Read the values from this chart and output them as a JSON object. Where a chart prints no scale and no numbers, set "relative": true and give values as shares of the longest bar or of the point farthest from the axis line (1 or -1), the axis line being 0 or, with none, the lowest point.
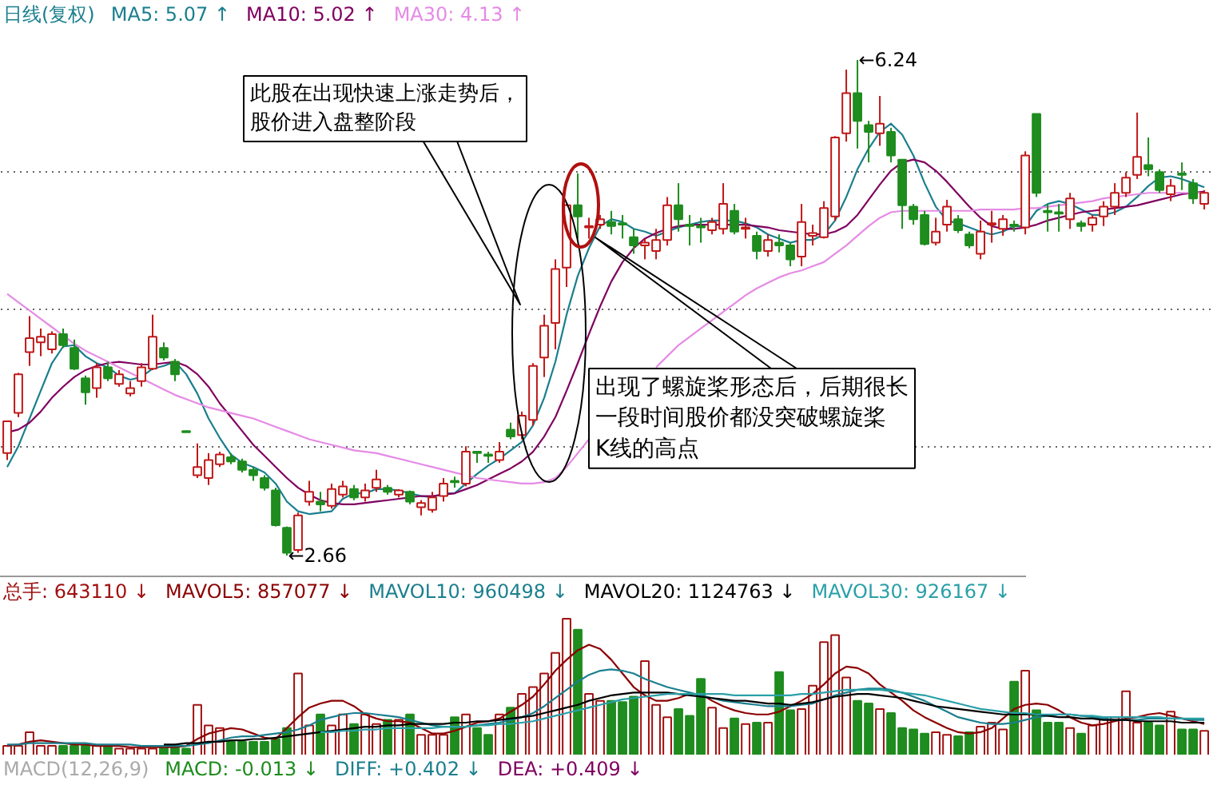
{
  "chart_data": [
    {
      "type": "candlestick",
      "title": "日线(复权)",
      "legend": "top left",
      "grid": "y",
      "yticks": [
        {
          "value": 5.43,
          "label": null
        },
        {
          "value": 4.44,
          "label": null
        },
        {
          "value": 3.45,
          "label": null
        }
      ],
      "categories": [
        null,
        null,
        null,
        null,
        null,
        null,
        null,
        null,
        null,
        null,
        null,
        null,
        null,
        null,
        null,
        null,
        null,
        null,
        null,
        null,
        null,
        null,
        null,
        null,
        null,
        null,
        null,
        null,
        null,
        null,
        null,
        null,
        null,
        null,
        null,
        null,
        null,
        null,
        null,
        null,
        null,
        null,
        null,
        null,
        null,
        null,
        null,
        null,
        null,
        null,
        null,
        null,
        null,
        null,
        null,
        null,
        null,
        null,
        null,
        null,
        null,
        null,
        null,
        null,
        null,
        null,
        null,
        null,
        null,
        null,
        null,
        null,
        null,
        null,
        null,
        null,
        null,
        null,
        null,
        null,
        null,
        null,
        null,
        null,
        null,
        null,
        null,
        null,
        null,
        null,
        null,
        null,
        null,
        null,
        null,
        null,
        null,
        null,
        null,
        null,
        null,
        null,
        null,
        null,
        null,
        null,
        null,
        null
      ],
      "ohlc": [
        [
          3.4,
          3.63,
          3.35,
          3.63
        ],
        [
          3.69,
          3.98,
          3.66,
          3.97
        ],
        [
          4.13,
          4.39,
          4.03,
          4.23
        ],
        [
          4.2,
          4.3,
          4.1,
          4.24
        ],
        [
          4.15,
          4.28,
          4.12,
          4.26
        ],
        [
          4.26,
          4.3,
          4.16,
          4.18
        ],
        [
          4.16,
          4.22,
          4.0,
          4.01
        ],
        [
          3.94,
          3.96,
          3.75,
          3.84
        ],
        [
          3.87,
          4.05,
          3.8,
          4.02
        ],
        [
          4.02,
          4.06,
          3.92,
          3.94
        ],
        [
          3.9,
          4.0,
          3.88,
          3.97
        ],
        [
          3.83,
          3.92,
          3.81,
          3.87
        ],
        [
          3.92,
          4.05,
          3.88,
          4.02
        ],
        [
          4.01,
          4.4,
          4.0,
          4.24
        ],
        [
          4.16,
          4.2,
          4.07,
          4.09
        ],
        [
          4.06,
          4.08,
          3.92,
          3.97
        ],
        [
          3.56,
          3.56,
          3.55,
          3.55
        ],
        [
          3.24,
          3.47,
          3.22,
          3.3
        ],
        [
          3.22,
          3.4,
          3.17,
          3.35
        ],
        [
          3.32,
          3.41,
          3.3,
          3.39
        ],
        [
          3.37,
          3.4,
          3.32,
          3.34
        ],
        [
          3.34,
          3.36,
          3.26,
          3.28
        ],
        [
          3.28,
          3.3,
          3.2,
          3.24
        ],
        [
          3.22,
          3.24,
          3.13,
          3.15
        ],
        [
          3.13,
          3.15,
          2.87,
          2.88
        ],
        [
          2.86,
          2.87,
          2.66,
          2.68
        ],
        [
          2.7,
          2.97,
          2.68,
          2.95
        ],
        [
          3.05,
          3.2,
          3.02,
          3.12
        ],
        [
          3.05,
          3.12,
          2.98,
          3.03
        ],
        [
          3.02,
          3.18,
          3.0,
          3.14
        ],
        [
          3.1,
          3.2,
          3.08,
          3.16
        ],
        [
          3.14,
          3.17,
          3.06,
          3.08
        ],
        [
          3.08,
          3.18,
          3.05,
          3.13
        ],
        [
          3.15,
          3.28,
          3.12,
          3.21
        ],
        [
          3.15,
          3.17,
          3.1,
          3.12
        ],
        [
          3.1,
          3.14,
          3.08,
          3.13
        ],
        [
          3.12,
          3.13,
          3.03,
          3.05
        ],
        [
          3.01,
          3.06,
          2.95,
          3.04
        ],
        [
          2.99,
          3.12,
          2.97,
          3.08
        ],
        [
          3.09,
          3.22,
          3.05,
          3.18
        ],
        [
          3.2,
          3.23,
          3.15,
          3.19
        ],
        [
          3.18,
          3.45,
          3.16,
          3.41
        ],
        [
          3.41,
          3.41,
          3.33,
          3.4
        ],
        [
          3.39,
          3.41,
          3.33,
          3.38
        ],
        [
          3.35,
          3.48,
          3.33,
          3.41
        ],
        [
          3.57,
          3.62,
          3.5,
          3.52
        ],
        [
          3.53,
          3.7,
          3.5,
          3.67
        ],
        [
          3.64,
          4.05,
          3.6,
          4.03
        ],
        [
          4.09,
          4.4,
          3.95,
          4.32
        ],
        [
          4.34,
          4.8,
          4.15,
          4.73
        ],
        [
          4.74,
          5.2,
          4.6,
          5.19
        ],
        [
          5.19,
          5.42,
          4.95,
          5.11
        ],
        [
          5.03,
          5.1,
          4.95,
          5.04
        ],
        [
          5.05,
          5.12,
          5.02,
          5.09
        ],
        [
          5.07,
          5.15,
          4.98,
          5.04
        ],
        [
          5.06,
          5.12,
          4.95,
          5.05
        ],
        [
          4.96,
          5.02,
          4.84,
          4.9
        ],
        [
          4.9,
          4.95,
          4.8,
          4.92
        ],
        [
          4.86,
          5.02,
          4.8,
          4.94
        ],
        [
          4.94,
          5.25,
          4.9,
          5.19
        ],
        [
          5.19,
          5.35,
          5.0,
          5.09
        ],
        [
          5.05,
          5.12,
          4.9,
          5.04
        ],
        [
          5.04,
          5.1,
          4.92,
          5.03
        ],
        [
          5.01,
          5.1,
          4.98,
          5.07
        ],
        [
          5.02,
          5.35,
          4.98,
          5.2
        ],
        [
          5.15,
          5.2,
          4.98,
          5.0
        ],
        [
          5.02,
          5.1,
          4.95,
          5.03
        ],
        [
          4.97,
          5.0,
          4.8,
          4.86
        ],
        [
          4.86,
          4.98,
          4.82,
          4.94
        ],
        [
          4.92,
          4.98,
          4.85,
          4.9
        ],
        [
          4.9,
          4.92,
          4.75,
          4.8
        ],
        [
          4.82,
          5.2,
          4.75,
          5.07
        ],
        [
          4.97,
          5.05,
          4.9,
          4.99
        ],
        [
          4.96,
          5.22,
          4.95,
          5.17
        ],
        [
          5.11,
          5.69,
          5.08,
          5.68
        ],
        [
          5.71,
          6.17,
          5.65,
          6.0
        ],
        [
          6.0,
          6.24,
          5.6,
          5.8
        ],
        [
          5.77,
          5.8,
          5.5,
          5.72
        ],
        [
          5.71,
          5.98,
          5.62,
          5.78
        ],
        [
          5.72,
          5.75,
          5.5,
          5.55
        ],
        [
          5.52,
          5.52,
          5.02,
          5.19
        ],
        [
          5.18,
          5.2,
          5.05,
          5.09
        ],
        [
          5.12,
          5.15,
          4.9,
          4.91
        ],
        [
          4.92,
          5.1,
          4.9,
          5.0
        ],
        [
          5.05,
          5.23,
          5.0,
          5.18
        ],
        [
          5.09,
          5.12,
          4.99,
          5.01
        ],
        [
          4.98,
          5.0,
          4.88,
          4.9
        ],
        [
          4.84,
          5.08,
          4.8,
          5.0
        ],
        [
          5.05,
          5.15,
          4.92,
          5.06
        ],
        [
          5.02,
          5.12,
          4.97,
          5.09
        ],
        [
          5.05,
          5.08,
          5.0,
          5.04
        ],
        [
          5.03,
          5.58,
          4.98,
          5.55
        ],
        [
          5.85,
          5.85,
          5.25,
          5.28
        ],
        [
          5.15,
          5.2,
          5.0,
          5.14
        ],
        [
          5.14,
          5.2,
          5.0,
          5.13
        ],
        [
          5.09,
          5.28,
          5.02,
          5.24
        ],
        [
          5.06,
          5.08,
          5.0,
          5.04
        ],
        [
          5.05,
          5.12,
          5.0,
          5.1
        ],
        [
          5.11,
          5.22,
          5.04,
          5.18
        ],
        [
          5.18,
          5.35,
          5.12,
          5.28
        ],
        [
          5.28,
          5.43,
          5.25,
          5.39
        ],
        [
          5.41,
          5.86,
          5.38,
          5.54
        ],
        [
          5.48,
          5.68,
          5.4,
          5.45
        ],
        [
          5.43,
          5.45,
          5.28,
          5.3
        ],
        [
          5.27,
          5.38,
          5.22,
          5.33
        ],
        [
          5.42,
          5.5,
          5.3,
          5.41
        ],
        [
          5.35,
          5.38,
          5.2,
          5.24
        ],
        [
          5.2,
          5.3,
          5.16,
          5.28
        ]
      ],
      "series": [
        {
          "name": "MA5: 5.07 ↑",
          "type": "line",
          "color": "#1a7f8e",
          "values": [
            3.3,
            3.45,
            3.65,
            3.85,
            4.05,
            4.17,
            4.18,
            4.1,
            4.05,
            4.02,
            3.96,
            3.93,
            3.95,
            4.01,
            4.03,
            4.06,
            3.97,
            3.83,
            3.65,
            3.51,
            3.39,
            3.33,
            3.3,
            3.26,
            3.18,
            3.05,
            2.98,
            2.96,
            2.97,
            2.98,
            3.07,
            3.11,
            3.11,
            3.14,
            3.14,
            3.13,
            3.11,
            3.09,
            3.08,
            3.11,
            3.11,
            3.18,
            3.25,
            3.31,
            3.36,
            3.42,
            3.48,
            3.6,
            3.8,
            4.06,
            4.4,
            4.68,
            4.88,
            5.04,
            5.09,
            5.07,
            5.02,
            5.0,
            4.97,
            5.0,
            5.03,
            5.05,
            5.07,
            5.08,
            5.08,
            5.08,
            5.06,
            5.03,
            4.98,
            4.95,
            4.92,
            4.94,
            4.94,
            4.98,
            5.08,
            5.25,
            5.45,
            5.6,
            5.72,
            5.78,
            5.7,
            5.55,
            5.35,
            5.18,
            5.08,
            5.06,
            5.03,
            5.0,
            4.98,
            5.0,
            5.04,
            5.04,
            5.15,
            5.2,
            5.22,
            5.2,
            5.16,
            5.12,
            5.12,
            5.14,
            5.18,
            5.25,
            5.33,
            5.39,
            5.4,
            5.38,
            5.35,
            5.32
          ]
        },
        {
          "name": "MA10: 5.02 ↑",
          "type": "line",
          "color": "#800060",
          "values": [
            3.55,
            3.57,
            3.62,
            3.7,
            3.8,
            3.88,
            3.95,
            4.0,
            4.03,
            4.05,
            4.06,
            4.05,
            4.04,
            4.04,
            4.05,
            4.06,
            4.03,
            3.97,
            3.88,
            3.76,
            3.66,
            3.56,
            3.46,
            3.38,
            3.3,
            3.22,
            3.15,
            3.1,
            3.06,
            3.04,
            3.03,
            3.03,
            3.04,
            3.05,
            3.06,
            3.07,
            3.08,
            3.09,
            3.09,
            3.1,
            3.11,
            3.14,
            3.17,
            3.21,
            3.25,
            3.29,
            3.34,
            3.41,
            3.52,
            3.66,
            3.85,
            4.05,
            4.26,
            4.46,
            4.64,
            4.78,
            4.88,
            4.95,
            4.99,
            5.02,
            5.04,
            5.05,
            5.05,
            5.05,
            5.05,
            5.05,
            5.05,
            5.04,
            5.03,
            5.01,
            5.0,
            4.99,
            4.98,
            4.98,
            5.0,
            5.04,
            5.12,
            5.23,
            5.34,
            5.44,
            5.5,
            5.52,
            5.5,
            5.44,
            5.36,
            5.27,
            5.18,
            5.1,
            5.04,
            5.02,
            5.02,
            5.03,
            5.05,
            5.08,
            5.1,
            5.12,
            5.14,
            5.15,
            5.16,
            5.17,
            5.18,
            5.19,
            5.21,
            5.23,
            5.25,
            5.27,
            5.28,
            5.29
          ]
        },
        {
          "name": "MA30: 4.13 ↑",
          "type": "line",
          "color": "#e58ae5",
          "values": [
            4.55,
            4.49,
            4.43,
            4.37,
            4.31,
            4.25,
            4.19,
            4.14,
            4.1,
            4.06,
            4.02,
            3.98,
            3.94,
            3.9,
            3.86,
            3.82,
            3.79,
            3.76,
            3.73,
            3.71,
            3.69,
            3.67,
            3.65,
            3.62,
            3.59,
            3.56,
            3.53,
            3.5,
            3.48,
            3.46,
            3.44,
            3.42,
            3.41,
            3.4,
            3.38,
            3.36,
            3.34,
            3.32,
            3.3,
            3.28,
            3.26,
            3.24,
            3.22,
            3.21,
            3.2,
            3.19,
            3.18,
            3.18,
            3.19,
            3.22,
            3.3,
            3.4,
            3.5,
            null,
            null,
            null,
            null,
            null,
            4.02,
            4.1,
            4.18,
            4.24,
            4.3,
            4.36,
            4.42,
            4.48,
            4.54,
            4.59,
            4.63,
            4.67,
            4.7,
            4.72,
            4.75,
            4.78,
            4.84,
            4.9,
            4.97,
            5.04,
            5.1,
            5.14,
            5.15,
            5.15,
            5.15,
            5.15,
            5.15,
            5.15,
            5.15,
            5.16,
            5.16,
            5.16,
            5.16,
            5.17,
            5.17,
            5.18,
            5.19,
            5.2,
            5.21,
            5.22,
            5.24,
            5.25,
            5.26,
            5.27,
            5.28,
            5.28,
            5.28,
            5.28,
            5.28,
            5.28
          ]
        }
      ],
      "annotations": [
        "←6.24",
        "←2.66",
        "此股在出现快速上涨走势后，股价进入盘整阶段",
        "出现了螺旋桨形态后，后期很长一段时间股价都没突破螺旋桨K线的高点"
      ]
    },
    {
      "type": "bar",
      "relative": true,
      "legend": "top left",
      "categories": [
        null,
        null,
        null,
        null,
        null,
        null,
        null,
        null,
        null,
        null,
        null,
        null,
        null,
        null,
        null,
        null,
        null,
        null,
        null,
        null,
        null,
        null,
        null,
        null,
        null,
        null,
        null,
        null,
        null,
        null,
        null,
        null,
        null,
        null,
        null,
        null,
        null,
        null,
        null,
        null,
        null,
        null,
        null,
        null,
        null,
        null,
        null,
        null,
        null,
        null,
        null,
        null,
        null,
        null,
        null,
        null,
        null,
        null,
        null,
        null,
        null,
        null,
        null,
        null,
        null,
        null,
        null,
        null,
        null,
        null,
        null,
        null,
        null,
        null,
        null,
        null,
        null,
        null,
        null,
        null,
        null,
        null,
        null,
        null,
        null,
        null,
        null,
        null,
        null,
        null,
        null,
        null,
        null,
        null,
        null,
        null,
        null,
        null,
        null,
        null,
        null,
        null,
        null,
        null,
        null,
        null,
        null,
        null
      ],
      "series": [
        {
          "name": "总手: 643110 ↓",
          "type": "bar",
          "color": "#a01010",
          "colors": [
            "#a01010",
            "#a01010",
            "#a01010",
            "#a01010",
            "#a01010",
            "#1e8c1e",
            "#1e8c1e",
            "#1e8c1e",
            "#a01010",
            "#1e8c1e",
            "#a01010",
            "#a01010",
            "#a01010",
            "#a01010",
            "#1e8c1e",
            "#1e8c1e",
            "#1e8c1e",
            "#a01010",
            "#a01010",
            "#a01010",
            "#1e8c1e",
            "#1e8c1e",
            "#1e8c1e",
            "#1e8c1e",
            "#1e8c1e",
            "#1e8c1e",
            "#a01010",
            "#a01010",
            "#1e8c1e",
            "#a01010",
            "#a01010",
            "#1e8c1e",
            "#a01010",
            "#a01010",
            "#1e8c1e",
            "#a01010",
            "#1e8c1e",
            "#a01010",
            "#a01010",
            "#a01010",
            "#1e8c1e",
            "#a01010",
            "#1e8c1e",
            "#1e8c1e",
            "#a01010",
            "#1e8c1e",
            "#a01010",
            "#a01010",
            "#a01010",
            "#a01010",
            "#a01010",
            "#1e8c1e",
            "#a01010",
            "#a01010",
            "#1e8c1e",
            "#1e8c1e",
            "#1e8c1e",
            "#a01010",
            "#a01010",
            "#a01010",
            "#1e8c1e",
            "#1e8c1e",
            "#1e8c1e",
            "#a01010",
            "#a01010",
            "#1e8c1e",
            "#a01010",
            "#1e8c1e",
            "#a01010",
            "#1e8c1e",
            "#1e8c1e",
            "#a01010",
            "#a01010",
            "#a01010",
            "#a01010",
            "#a01010",
            "#1e8c1e",
            "#1e8c1e",
            "#a01010",
            "#1e8c1e",
            "#1e8c1e",
            "#1e8c1e",
            "#1e8c1e",
            "#a01010",
            "#a01010",
            "#1e8c1e",
            "#1e8c1e",
            "#a01010",
            "#a01010",
            "#a01010",
            "#1e8c1e",
            "#a01010",
            "#1e8c1e",
            "#1e8c1e",
            "#1e8c1e",
            "#a01010",
            "#1e8c1e",
            "#a01010",
            "#a01010",
            "#a01010",
            "#a01010",
            "#a01010",
            "#1e8c1e",
            "#1e8c1e",
            "#a01010",
            "#1e8c1e",
            "#1e8c1e",
            "#a01010"
          ],
          "values": [
            0.07,
            0.07,
            0.17,
            0.07,
            0.07,
            0.07,
            0.07,
            0.07,
            0.07,
            0.07,
            0.05,
            0.05,
            0.05,
            0.05,
            0.07,
            0.07,
            0.05,
            0.37,
            0.22,
            0.2,
            0.1,
            0.1,
            0.1,
            0.1,
            0.12,
            0.2,
            0.6,
            0.22,
            0.3,
            0.22,
            0.3,
            0.23,
            0.3,
            0.23,
            0.26,
            0.26,
            0.3,
            0.15,
            0.15,
            0.15,
            0.28,
            0.3,
            0.2,
            0.15,
            0.3,
            0.35,
            0.45,
            0.5,
            0.6,
            0.75,
            1.0,
            0.92,
            0.45,
            0.4,
            0.4,
            0.39,
            0.43,
            0.69,
            0.37,
            0.28,
            0.34,
            0.29,
            0.56,
            0.35,
            0.2,
            0.27,
            0.23,
            0.24,
            0.24,
            0.61,
            0.33,
            0.34,
            0.51,
            0.83,
            0.88,
            0.57,
            0.4,
            0.38,
            0.34,
            0.31,
            0.2,
            0.19,
            0.16,
            0.17,
            0.15,
            0.14,
            0.17,
            0.21,
            0.24,
            0.19,
            0.54,
            0.62,
            0.33,
            0.24,
            0.24,
            0.2,
            0.16,
            0.22,
            0.28,
            0.28,
            0.47,
            0.24,
            0.24,
            0.22,
            0.32,
            0.19,
            0.19,
            0.18
          ]
        },
        {
          "name": "MAVOL5: 857077 ↓",
          "type": "line",
          "color": "#8b0000",
          "values": [
            0.07,
            0.08,
            0.1,
            0.11,
            0.1,
            0.09,
            0.08,
            0.08,
            0.07,
            0.07,
            0.07,
            0.06,
            0.06,
            0.06,
            0.06,
            0.06,
            0.07,
            0.12,
            0.16,
            0.18,
            0.2,
            0.19,
            0.16,
            0.13,
            0.12,
            0.2,
            0.28,
            0.35,
            0.38,
            0.4,
            0.4,
            0.36,
            0.3,
            0.27,
            0.25,
            0.25,
            0.24,
            0.2,
            0.16,
            0.16,
            0.18,
            0.21,
            0.24,
            0.25,
            0.27,
            0.32,
            0.37,
            0.43,
            0.52,
            0.62,
            0.7,
            0.77,
            0.81,
            0.78,
            0.7,
            0.6,
            0.5,
            0.44,
            0.4,
            0.4,
            0.42,
            0.45,
            0.45,
            0.4,
            0.36,
            0.33,
            0.31,
            0.3,
            0.3,
            0.32,
            0.36,
            0.4,
            0.45,
            0.52,
            0.6,
            0.65,
            0.64,
            0.6,
            0.52,
            0.46,
            0.4,
            0.33,
            0.28,
            0.24,
            0.2,
            0.17,
            0.16,
            0.17,
            0.2,
            0.27,
            0.34,
            0.37,
            0.38,
            0.37,
            0.33,
            0.28,
            0.24,
            0.22,
            0.23,
            0.25,
            0.27,
            0.28,
            0.3,
            0.31,
            0.29,
            0.27,
            0.25,
            0.23
          ]
        },
        {
          "name": "MAVOL10: 960498 ↓",
          "type": "line",
          "color": "#1a7f8e",
          "values": [
            0.08,
            0.08,
            0.09,
            0.09,
            0.09,
            0.09,
            0.09,
            0.09,
            0.08,
            0.08,
            0.08,
            0.08,
            0.07,
            0.07,
            0.07,
            0.07,
            0.07,
            0.08,
            0.09,
            0.11,
            0.13,
            0.14,
            0.14,
            0.15,
            0.16,
            0.17,
            0.19,
            0.22,
            0.26,
            0.28,
            0.3,
            0.31,
            0.31,
            0.3,
            0.29,
            0.28,
            0.26,
            0.24,
            0.22,
            0.21,
            0.21,
            0.21,
            0.22,
            0.23,
            0.24,
            0.26,
            0.28,
            0.31,
            0.36,
            0.42,
            0.48,
            0.54,
            0.59,
            0.62,
            0.63,
            0.62,
            0.6,
            0.56,
            0.53,
            0.5,
            0.48,
            0.46,
            0.44,
            0.42,
            0.4,
            0.39,
            0.38,
            0.37,
            0.36,
            0.36,
            0.36,
            0.37,
            0.38,
            0.41,
            0.44,
            0.46,
            0.48,
            0.49,
            0.49,
            0.48,
            0.46,
            0.43,
            0.4,
            0.36,
            0.32,
            0.28,
            0.26,
            0.24,
            0.23,
            0.23,
            0.24,
            0.26,
            0.28,
            0.29,
            0.3,
            0.3,
            0.29,
            0.28,
            0.27,
            0.26,
            0.26,
            0.26,
            0.27,
            0.27,
            0.27,
            0.27,
            0.26,
            0.26
          ]
        },
        {
          "name": "MAVOL20: 1124763 ↓",
          "type": "line",
          "color": "#000000",
          "values": [
            null,
            null,
            null,
            null,
            null,
            null,
            null,
            null,
            null,
            null,
            null,
            null,
            null,
            null,
            0.08,
            0.08,
            0.09,
            0.09,
            0.1,
            0.1,
            0.11,
            0.11,
            0.12,
            0.12,
            0.13,
            0.14,
            0.15,
            0.16,
            0.17,
            0.18,
            0.19,
            0.2,
            0.21,
            0.21,
            0.22,
            0.22,
            0.23,
            0.23,
            0.23,
            0.23,
            0.24,
            0.24,
            0.25,
            0.25,
            0.26,
            0.27,
            0.28,
            0.29,
            0.31,
            0.33,
            0.35,
            0.37,
            0.4,
            0.42,
            0.44,
            0.45,
            0.46,
            0.46,
            0.46,
            0.46,
            0.45,
            0.44,
            0.43,
            0.42,
            0.41,
            0.4,
            0.4,
            0.39,
            0.38,
            0.38,
            0.37,
            0.38,
            0.39,
            0.41,
            0.43,
            0.44,
            0.45,
            0.45,
            0.44,
            0.43,
            0.42,
            0.4,
            0.38,
            0.36,
            0.35,
            0.34,
            0.33,
            0.32,
            0.31,
            0.3,
            0.3,
            0.3,
            0.3,
            0.29,
            0.28,
            0.28,
            0.27,
            0.27,
            0.26,
            0.26,
            0.26,
            0.25,
            0.25,
            0.25,
            0.25,
            0.24,
            0.24,
            0.24
          ]
        },
        {
          "name": "MAVOL30: 926167 ↓",
          "type": "line",
          "color": "#2aa0a8",
          "values": [
            null,
            null,
            null,
            null,
            null,
            null,
            null,
            null,
            null,
            null,
            null,
            null,
            null,
            null,
            null,
            null,
            null,
            null,
            null,
            null,
            null,
            null,
            null,
            null,
            null,
            null,
            null,
            null,
            0.17,
            0.17,
            0.18,
            0.18,
            0.19,
            0.19,
            0.2,
            0.2,
            0.2,
            0.2,
            0.2,
            0.21,
            0.21,
            0.21,
            0.22,
            0.22,
            0.23,
            0.23,
            0.24,
            0.25,
            0.27,
            0.29,
            0.31,
            0.33,
            0.35,
            0.37,
            0.39,
            0.41,
            0.42,
            0.43,
            0.44,
            0.45,
            0.45,
            0.45,
            0.45,
            0.45,
            0.45,
            0.44,
            0.44,
            0.44,
            0.44,
            0.44,
            0.44,
            0.45,
            0.45,
            0.46,
            0.47,
            0.48,
            0.48,
            0.48,
            0.48,
            0.47,
            0.46,
            0.45,
            0.44,
            0.42,
            0.4,
            0.38,
            0.36,
            0.34,
            0.33,
            0.32,
            0.31,
            0.31,
            0.3,
            0.3,
            0.3,
            0.3,
            0.29,
            0.29,
            0.28,
            0.28,
            0.28,
            0.28,
            0.28,
            0.28,
            0.27,
            0.27,
            0.27,
            0.27
          ]
        }
      ]
    },
    {
      "type": "other",
      "title": "MACD(12,26,9)",
      "annotations": [
        "MACD: -0.013 ↓",
        "DIFF: +0.402 ↓",
        "DEA: +0.409 ↓"
      ]
    }
  ]
}
